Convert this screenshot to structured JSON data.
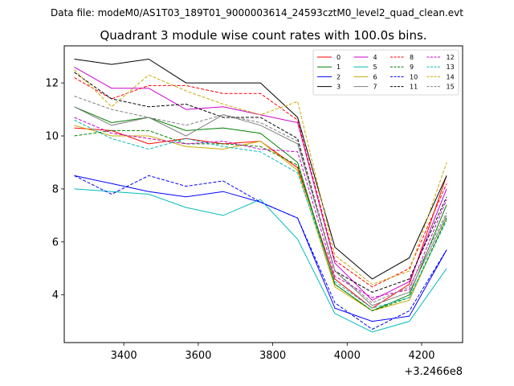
{
  "chart_data": {
    "type": "line",
    "supertitle": "Data file: modeM0/AS1T03_189T01_9000003614_24593cztM0_level2_quad_clean.evt",
    "title": "Quadrant 3 module wise count rates with 100.0s bins.",
    "xlabel": "",
    "ylabel": "",
    "x_offset_label": "+3.2466e8",
    "x": [
      3267,
      3367,
      3467,
      3567,
      3667,
      3767,
      3867,
      3967,
      4067,
      4167,
      4267
    ],
    "xlim": [
      3240,
      4310
    ],
    "ylim": [
      2.2,
      13.4
    ],
    "xticks": [
      3400,
      3600,
      3800,
      4000,
      4200
    ],
    "yticks": [
      4,
      6,
      8,
      10,
      12
    ],
    "legend_location": "top-right",
    "series": [
      {
        "name": "0",
        "color": "#ff0000",
        "dashed": false,
        "values": [
          10.3,
          10.2,
          9.7,
          9.9,
          9.7,
          9.8,
          8.8,
          4.6,
          3.5,
          4.4,
          8.5
        ]
      },
      {
        "name": "1",
        "color": "#008000",
        "dashed": false,
        "values": [
          11.1,
          10.5,
          10.7,
          10.2,
          10.3,
          10.1,
          9.0,
          4.4,
          3.4,
          4.0,
          7.4
        ]
      },
      {
        "name": "2",
        "color": "#0000ff",
        "dashed": false,
        "values": [
          8.5,
          8.2,
          7.9,
          7.7,
          7.9,
          7.5,
          6.9,
          3.5,
          3.0,
          3.2,
          5.7
        ]
      },
      {
        "name": "3",
        "color": "#000000",
        "dashed": false,
        "values": [
          12.9,
          12.7,
          12.9,
          12.0,
          12.0,
          12.0,
          10.7,
          5.8,
          4.6,
          5.4,
          8.5
        ]
      },
      {
        "name": "4",
        "color": "#cc00cc",
        "dashed": false,
        "values": [
          12.6,
          11.8,
          11.8,
          11.0,
          11.1,
          10.8,
          10.5,
          5.2,
          3.8,
          4.5,
          8.0
        ]
      },
      {
        "name": "5",
        "color": "#00bbbb",
        "dashed": false,
        "values": [
          8.0,
          7.9,
          7.8,
          7.3,
          7.0,
          7.6,
          6.1,
          3.3,
          2.6,
          3.0,
          5.0
        ]
      },
      {
        "name": "6",
        "color": "#ccaa00",
        "dashed": false,
        "values": [
          10.4,
          10.0,
          10.0,
          9.6,
          9.5,
          9.8,
          8.7,
          4.3,
          3.4,
          3.8,
          6.9
        ]
      },
      {
        "name": "7",
        "color": "#808080",
        "dashed": false,
        "values": [
          11.1,
          10.4,
          10.7,
          10.0,
          10.8,
          10.4,
          9.7,
          4.9,
          3.6,
          4.1,
          7.0
        ]
      },
      {
        "name": "8",
        "color": "#ff0000",
        "dashed": true,
        "values": [
          12.2,
          11.4,
          11.9,
          11.9,
          11.6,
          11.6,
          10.6,
          5.3,
          4.3,
          5.0,
          8.2
        ]
      },
      {
        "name": "9",
        "color": "#008000",
        "dashed": true,
        "values": [
          10.0,
          10.2,
          10.2,
          9.7,
          9.7,
          9.6,
          8.9,
          4.4,
          3.4,
          3.9,
          6.9
        ]
      },
      {
        "name": "10",
        "color": "#0000ff",
        "dashed": true,
        "values": [
          8.5,
          7.8,
          8.5,
          8.1,
          8.3,
          7.5,
          6.9,
          3.7,
          2.7,
          3.4,
          5.7
        ]
      },
      {
        "name": "11",
        "color": "#000000",
        "dashed": true,
        "values": [
          12.4,
          11.4,
          11.1,
          11.2,
          10.7,
          10.7,
          9.9,
          4.9,
          4.1,
          4.6,
          7.7
        ]
      },
      {
        "name": "12",
        "color": "#cc00cc",
        "dashed": true,
        "values": [
          10.7,
          10.1,
          9.9,
          9.7,
          9.8,
          9.5,
          9.4,
          4.7,
          3.9,
          4.2,
          7.6
        ]
      },
      {
        "name": "13",
        "color": "#00bbbb",
        "dashed": true,
        "values": [
          10.6,
          9.9,
          9.5,
          9.9,
          9.6,
          9.4,
          8.6,
          4.5,
          3.5,
          3.9,
          6.8
        ]
      },
      {
        "name": "14",
        "color": "#ccaa00",
        "dashed": true,
        "values": [
          12.5,
          11.1,
          12.3,
          11.7,
          11.2,
          10.8,
          11.3,
          5.5,
          4.4,
          4.9,
          9.0
        ]
      },
      {
        "name": "15",
        "color": "#808080",
        "dashed": true,
        "values": [
          11.5,
          11.0,
          10.7,
          10.4,
          10.8,
          10.5,
          9.8,
          4.9,
          3.7,
          4.3,
          7.1
        ]
      }
    ]
  }
}
